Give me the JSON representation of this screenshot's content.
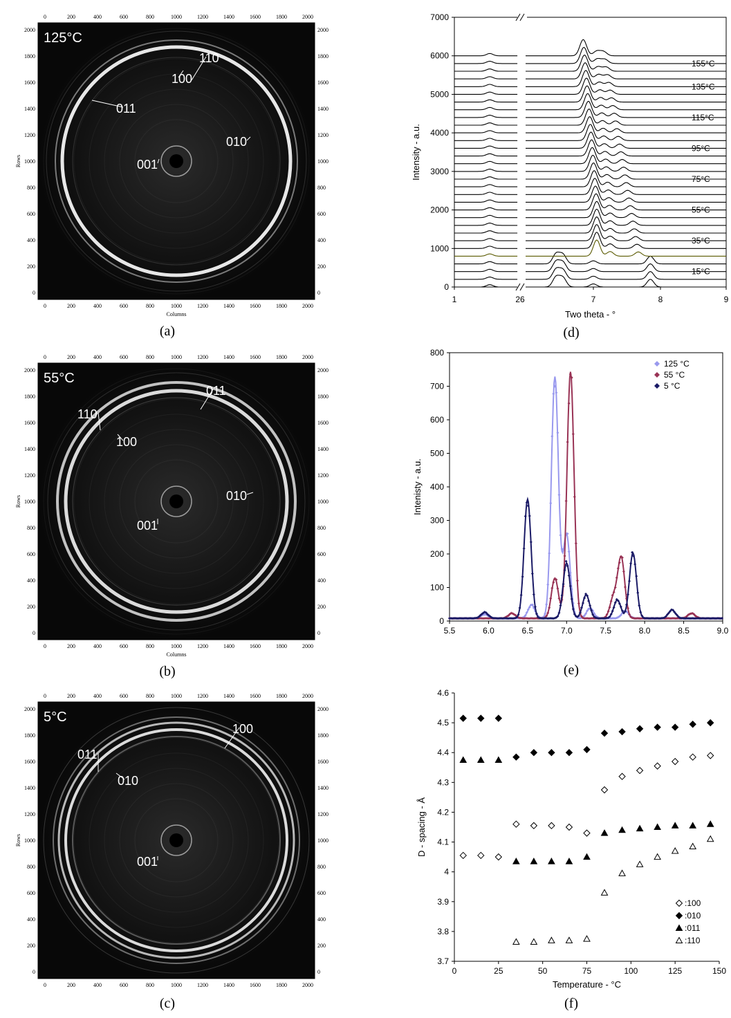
{
  "captions": {
    "a": "(a)",
    "b": "(b)",
    "c": "(c)",
    "d": "(d)",
    "e": "(e)",
    "f": "(f)"
  },
  "detector": {
    "ticks": [
      "0",
      "200",
      "400",
      "600",
      "800",
      "1000",
      "1200",
      "1400",
      "1600",
      "1800",
      "2000"
    ],
    "xlabel": "Columns",
    "ylabel": "Rows",
    "panels": [
      {
        "temp": "125°C",
        "labels": [
          "110",
          "100",
          "011",
          "010",
          "001"
        ]
      },
      {
        "temp": "55°C",
        "labels": [
          "011",
          "110",
          "100",
          "010",
          "001"
        ]
      },
      {
        "temp": "5°C",
        "labels": [
          "100",
          "011",
          "010",
          "001"
        ]
      }
    ]
  },
  "chart_data": [
    {
      "type": "line",
      "panel": "d",
      "xlabel": "Two theta - °",
      "ylabel": "Intensity - a.u.",
      "x_tick_labels": [
        "1",
        "2",
        "6",
        "7",
        "8",
        "9"
      ],
      "y_ticks": [
        0,
        1000,
        2000,
        3000,
        4000,
        5000,
        6000,
        7000
      ],
      "ylim": [
        0,
        7000
      ],
      "axis_break": "between 2 and 6",
      "curve_labels": [
        "15°C",
        "35°C",
        "55°C",
        "75°C",
        "95°C",
        "115°C",
        "135°C",
        "155°C"
      ],
      "series_offsets": [
        0,
        200,
        400,
        600,
        800,
        1000,
        1200,
        1400,
        1600,
        1800,
        2000,
        2200,
        2400,
        2600,
        2800,
        3000,
        3200,
        3400,
        3600,
        3800,
        4000,
        4200,
        4400,
        4600,
        4800,
        5000,
        5200,
        5400,
        5600,
        5800,
        6000
      ],
      "note": "stacked diffraction patterns, one per temperature"
    },
    {
      "type": "scatter",
      "panel": "e",
      "xlabel": "Two theta - °",
      "ylabel": "Intenisty - a.u.",
      "xlim": [
        5.5,
        9.0
      ],
      "ylim": [
        0,
        800
      ],
      "x_ticks": [
        "5.5",
        "6.0",
        "6.5",
        "7.0",
        "7.5",
        "8.0",
        "8.5",
        "9.0"
      ],
      "y_ticks": [
        0,
        100,
        200,
        300,
        400,
        500,
        600,
        700,
        800
      ],
      "legend_position": "top-right",
      "series": [
        {
          "name": "125 °C",
          "color": "#9999ee",
          "peaks": [
            [
              5.95,
              12
            ],
            [
              6.55,
              40
            ],
            [
              6.85,
              720
            ],
            [
              7.0,
              250
            ],
            [
              7.3,
              30
            ],
            [
              7.75,
              22
            ]
          ]
        },
        {
          "name": "55 °C",
          "color": "#993355",
          "peaks": [
            [
              6.3,
              15
            ],
            [
              6.85,
              120
            ],
            [
              7.05,
              735
            ],
            [
              7.6,
              60
            ],
            [
              7.7,
              180
            ],
            [
              8.6,
              15
            ]
          ]
        },
        {
          "name": "5 °C",
          "color": "#1a1a66",
          "peaks": [
            [
              5.95,
              18
            ],
            [
              6.5,
              355
            ],
            [
              7.0,
              165
            ],
            [
              7.25,
              70
            ],
            [
              7.65,
              55
            ],
            [
              7.85,
              195
            ],
            [
              8.35,
              25
            ]
          ]
        }
      ]
    },
    {
      "type": "scatter",
      "panel": "f",
      "xlabel": "Temperature - °C",
      "ylabel": "D - spacing - Å",
      "xlim": [
        0,
        150
      ],
      "ylim": [
        3.7,
        4.6
      ],
      "x_ticks": [
        0,
        25,
        50,
        75,
        100,
        125,
        150
      ],
      "y_ticks": [
        "3.7",
        "3.8",
        "3.9",
        "4",
        "4.1",
        "4.2",
        "4.3",
        "4.4",
        "4.5",
        "4.6"
      ],
      "legend_position": "bottom-right",
      "series": [
        {
          "name": ":100",
          "marker": "open-diamond",
          "points": [
            [
              5,
              4.055
            ],
            [
              15,
              4.055
            ],
            [
              25,
              4.05
            ],
            [
              35,
              4.16
            ],
            [
              45,
              4.155
            ],
            [
              55,
              4.155
            ],
            [
              65,
              4.15
            ],
            [
              75,
              4.13
            ],
            [
              85,
              4.275
            ],
            [
              95,
              4.32
            ],
            [
              105,
              4.34
            ],
            [
              115,
              4.355
            ],
            [
              125,
              4.37
            ],
            [
              135,
              4.385
            ],
            [
              145,
              4.39
            ]
          ]
        },
        {
          "name": ":010",
          "marker": "filled-diamond",
          "points": [
            [
              5,
              4.515
            ],
            [
              15,
              4.515
            ],
            [
              25,
              4.515
            ],
            [
              35,
              4.385
            ],
            [
              45,
              4.4
            ],
            [
              55,
              4.4
            ],
            [
              65,
              4.4
            ],
            [
              75,
              4.41
            ],
            [
              85,
              4.465
            ],
            [
              95,
              4.47
            ],
            [
              105,
              4.48
            ],
            [
              115,
              4.485
            ],
            [
              125,
              4.485
            ],
            [
              135,
              4.495
            ],
            [
              145,
              4.5
            ]
          ]
        },
        {
          "name": ":011",
          "marker": "filled-triangle",
          "points": [
            [
              5,
              4.375
            ],
            [
              15,
              4.375
            ],
            [
              25,
              4.375
            ],
            [
              35,
              4.035
            ],
            [
              45,
              4.035
            ],
            [
              55,
              4.035
            ],
            [
              65,
              4.035
            ],
            [
              75,
              4.05
            ],
            [
              85,
              4.13
            ],
            [
              95,
              4.14
            ],
            [
              105,
              4.145
            ],
            [
              115,
              4.15
            ],
            [
              125,
              4.155
            ],
            [
              135,
              4.155
            ],
            [
              145,
              4.16
            ]
          ]
        },
        {
          "name": ":110",
          "marker": "open-triangle",
          "points": [
            [
              35,
              3.765
            ],
            [
              45,
              3.765
            ],
            [
              55,
              3.77
            ],
            [
              65,
              3.77
            ],
            [
              75,
              3.775
            ],
            [
              85,
              3.93
            ],
            [
              95,
              3.995
            ],
            [
              105,
              4.025
            ],
            [
              115,
              4.05
            ],
            [
              125,
              4.07
            ],
            [
              135,
              4.085
            ],
            [
              145,
              4.11
            ]
          ]
        }
      ]
    }
  ]
}
